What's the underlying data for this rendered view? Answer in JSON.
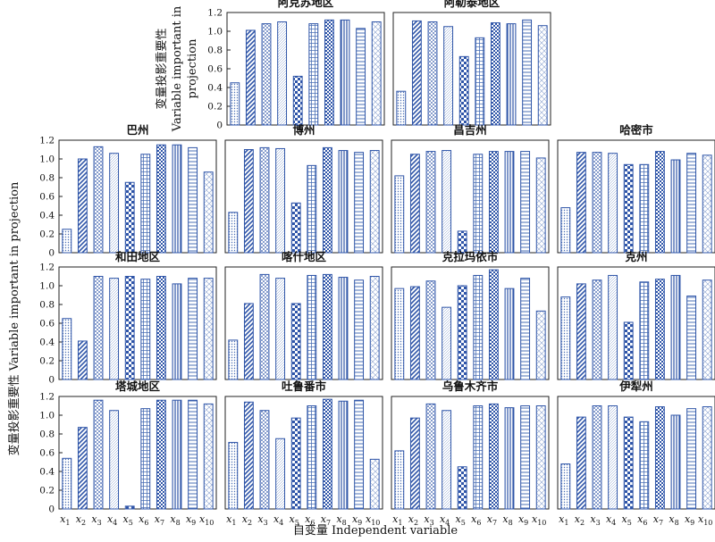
{
  "chart_data": {
    "type": "bar",
    "ylabel_cn": "变量投影重要性",
    "ylabel_en_1": "Variable important in",
    "ylabel_en_2": "projection",
    "ylabel_full": "变量投影重要性 Variable important in projection",
    "xlabel": "自变量 Independent variable",
    "ylim": [
      0,
      1.2
    ],
    "yticks": [
      "0",
      "0.2",
      "0.4",
      "0.6",
      "0.8",
      "1.0",
      "1.2"
    ],
    "categories": [
      "x1",
      "x2",
      "x3",
      "x4",
      "x5",
      "x6",
      "x7",
      "x8",
      "x9",
      "x10"
    ],
    "category_labels": [
      {
        "base": "x",
        "sub": "1"
      },
      {
        "base": "x",
        "sub": "2"
      },
      {
        "base": "x",
        "sub": "3"
      },
      {
        "base": "x",
        "sub": "4"
      },
      {
        "base": "x",
        "sub": "5"
      },
      {
        "base": "x",
        "sub": "6"
      },
      {
        "base": "x",
        "sub": "7"
      },
      {
        "base": "x",
        "sub": "8"
      },
      {
        "base": "x",
        "sub": "9"
      },
      {
        "base": "x",
        "sub": "10"
      }
    ],
    "panels": [
      {
        "title": "阿克苏地区",
        "values": [
          0.45,
          1.01,
          1.08,
          1.1,
          0.52,
          1.08,
          1.12,
          1.12,
          1.03,
          1.1
        ]
      },
      {
        "title": "阿勒泰地区",
        "values": [
          0.36,
          1.11,
          1.1,
          1.05,
          0.73,
          0.93,
          1.09,
          1.08,
          1.12,
          1.06
        ]
      },
      {
        "title": "巴州",
        "values": [
          0.25,
          1.0,
          1.13,
          1.06,
          0.75,
          1.05,
          1.15,
          1.15,
          1.12,
          0.86
        ]
      },
      {
        "title": "博州",
        "values": [
          0.43,
          1.1,
          1.12,
          1.11,
          0.53,
          0.93,
          1.12,
          1.09,
          1.07,
          1.09
        ]
      },
      {
        "title": "昌吉州",
        "values": [
          0.82,
          1.05,
          1.08,
          1.09,
          0.23,
          1.05,
          1.08,
          1.08,
          1.08,
          1.01
        ]
      },
      {
        "title": "哈密市",
        "values": [
          0.48,
          1.07,
          1.07,
          1.06,
          0.94,
          0.94,
          1.08,
          0.99,
          1.06,
          1.04
        ]
      },
      {
        "title": "和田地区",
        "values": [
          0.65,
          0.41,
          1.1,
          1.08,
          1.1,
          1.07,
          1.1,
          1.02,
          1.08,
          1.08
        ]
      },
      {
        "title": "喀什地区",
        "values": [
          0.42,
          0.81,
          1.12,
          1.08,
          0.81,
          1.11,
          1.12,
          1.09,
          1.06,
          1.1
        ]
      },
      {
        "title": "克拉玛依市",
        "values": [
          0.97,
          0.99,
          1.05,
          0.77,
          1.0,
          1.11,
          1.17,
          0.97,
          1.08,
          0.73
        ]
      },
      {
        "title": "克州",
        "values": [
          0.88,
          1.02,
          1.06,
          1.11,
          0.61,
          1.04,
          1.07,
          1.11,
          0.89,
          1.06
        ]
      },
      {
        "title": "塔城地区",
        "values": [
          0.54,
          0.87,
          1.16,
          1.05,
          0.03,
          1.07,
          1.16,
          1.16,
          1.16,
          1.12
        ]
      },
      {
        "title": "吐鲁番市",
        "values": [
          0.71,
          1.14,
          1.05,
          0.75,
          0.97,
          1.1,
          1.17,
          1.15,
          1.16,
          0.53
        ]
      },
      {
        "title": "乌鲁木齐市",
        "values": [
          0.62,
          0.97,
          1.12,
          1.05,
          0.45,
          1.1,
          1.12,
          1.08,
          1.1,
          1.1
        ]
      },
      {
        "title": "伊犁州",
        "values": [
          0.48,
          0.98,
          1.1,
          1.1,
          0.98,
          0.93,
          1.09,
          1.0,
          1.07,
          1.09
        ]
      }
    ]
  }
}
